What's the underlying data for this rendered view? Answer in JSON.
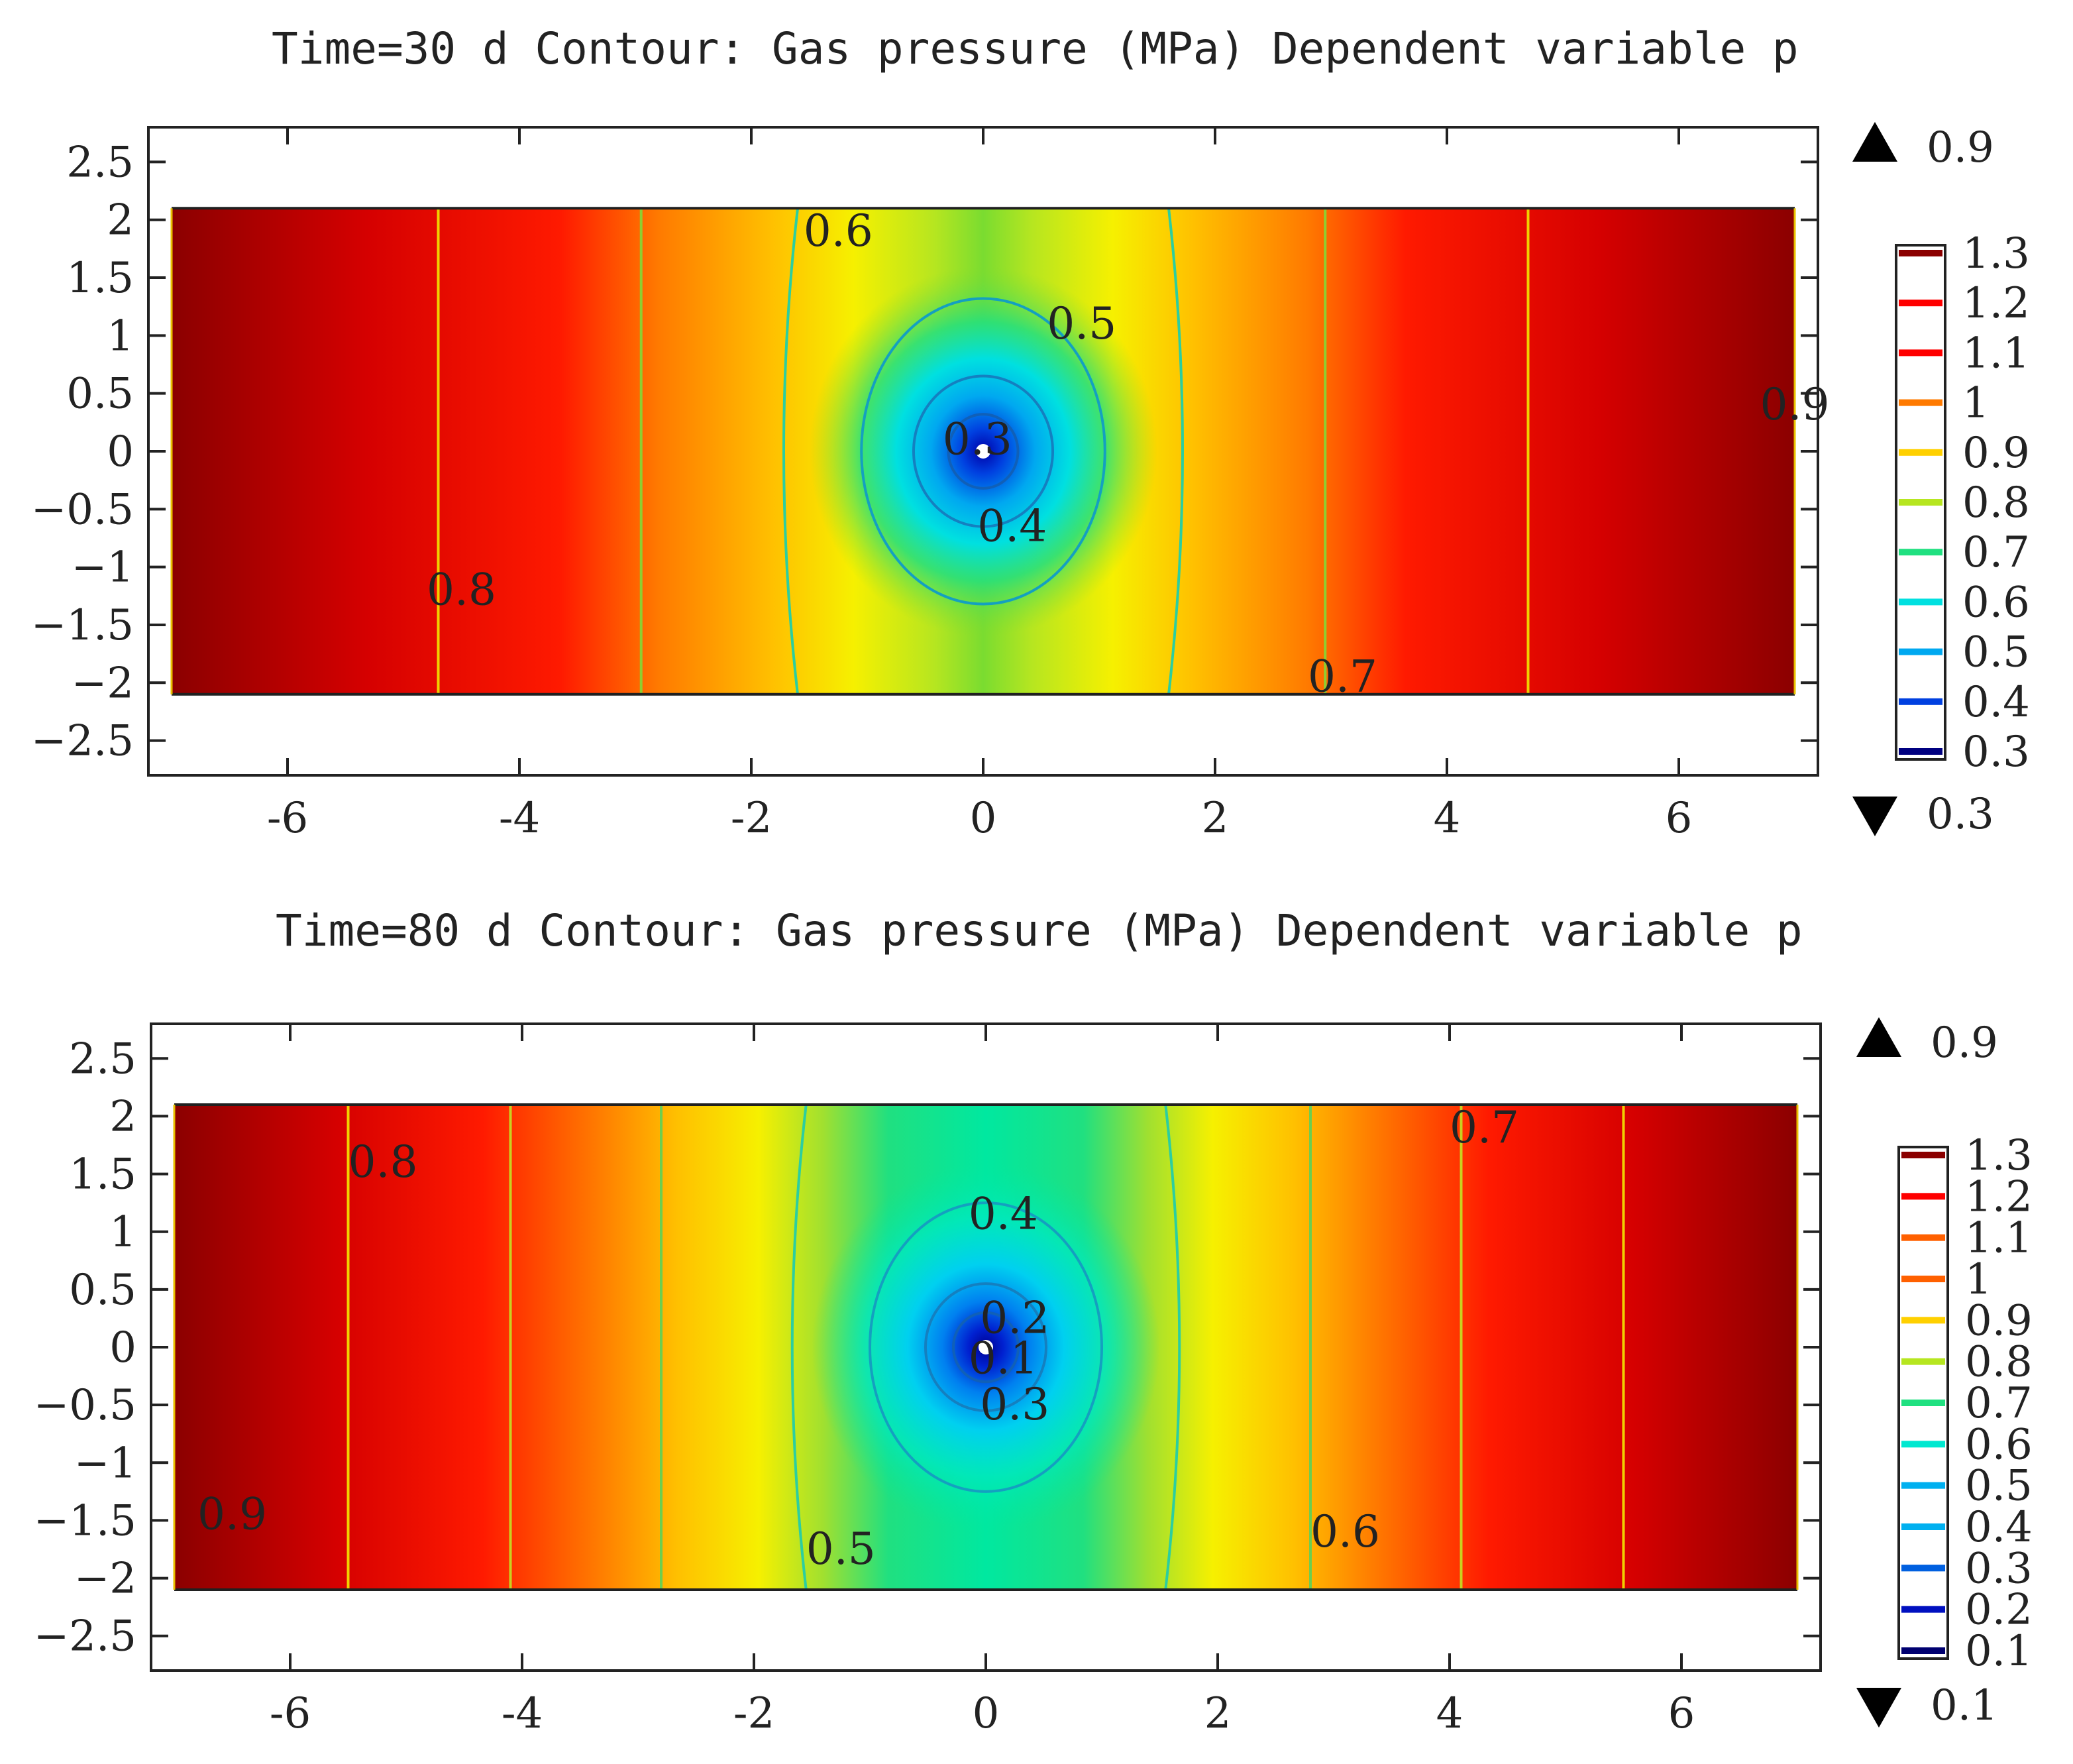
{
  "chart_data": [
    {
      "type": "contour",
      "title": "Time=30 d   Contour: Gas pressure (MPa)   Dependent variable p",
      "xlabel": "",
      "ylabel": "",
      "xlim": [
        -7.2,
        7.2
      ],
      "ylim": [
        -2.8,
        2.8
      ],
      "x_ticks": [
        "-6",
        "-4",
        "-2",
        "0",
        "2",
        "4",
        "6"
      ],
      "x_tick_values": [
        -6,
        -4,
        -2,
        0,
        2,
        4,
        6
      ],
      "y_ticks": [
        "2.5",
        "2",
        "1.5",
        "1",
        "0.5",
        "0",
        "−0.5",
        "−1",
        "−1.5",
        "−2",
        "−2.5"
      ],
      "y_tick_values": [
        2.5,
        2,
        1.5,
        1,
        0.5,
        0,
        -0.5,
        -1,
        -1.5,
        -2,
        -2.5
      ],
      "domain": {
        "x": [
          -7,
          7
        ],
        "y": [
          -2.1,
          2.1
        ]
      },
      "surface_range": [
        0.3,
        1.3
      ],
      "surface_max_label": "0.9",
      "surface_min_label": "0.3",
      "colorbar_ticks": [
        "1.3",
        "1.2",
        "1.1",
        "1",
        "0.9",
        "0.8",
        "0.7",
        "0.6",
        "0.5",
        "0.4",
        "0.3"
      ],
      "contour_levels": [
        {
          "level": 0.9,
          "color": "#f0d000",
          "x_positions": [
            -4.7,
            4.7
          ]
        },
        {
          "level": 0.8,
          "color": "#8fce30",
          "x_positions": [
            -2.95,
            2.95
          ]
        },
        {
          "level": 0.7,
          "color": "#2ccea0",
          "x_positions": [
            -1.6,
            1.6
          ]
        },
        {
          "level": 0.6,
          "color": "#14a0c0",
          "ellipse": {
            "rx": 1.05,
            "ry": 1.32
          }
        },
        {
          "level": 0.5,
          "color": "#1480c0",
          "ellipse": {
            "rx": 0.6,
            "ry": 0.65
          }
        },
        {
          "level": 0.4,
          "color": "#1060b8",
          "ellipse": {
            "rx": 0.3,
            "ry": 0.32
          }
        }
      ],
      "contour_labels": [
        {
          "text": "0.6",
          "x": -1.55,
          "y": 1.9
        },
        {
          "text": "0.5",
          "x": 0.55,
          "y": 1.1
        },
        {
          "text": "0.3",
          "x": -0.35,
          "y": 0.1
        },
        {
          "text": "0.4",
          "x": -0.05,
          "y": -0.65
        },
        {
          "text": "0.8",
          "x": -4.8,
          "y": -1.2
        },
        {
          "text": "0.7",
          "x": 2.8,
          "y": -1.95
        },
        {
          "text": "0.9",
          "x": 6.7,
          "y": 0.4
        }
      ]
    },
    {
      "type": "contour",
      "title": "Time=80 d   Contour: Gas pressure (MPa)   Dependent variable p",
      "xlabel": "",
      "ylabel": "",
      "xlim": [
        -7.2,
        7.2
      ],
      "ylim": [
        -2.8,
        2.8
      ],
      "x_ticks": [
        "-6",
        "-4",
        "-2",
        "0",
        "2",
        "4",
        "6"
      ],
      "x_tick_values": [
        -6,
        -4,
        -2,
        0,
        2,
        4,
        6
      ],
      "y_ticks": [
        "2.5",
        "2",
        "1.5",
        "1",
        "0.5",
        "0",
        "−0.5",
        "−1",
        "−1.5",
        "−2",
        "−2.5"
      ],
      "y_tick_values": [
        2.5,
        2,
        1.5,
        1,
        0.5,
        0,
        -0.5,
        -1,
        -1.5,
        -2,
        -2.5
      ],
      "domain": {
        "x": [
          -7,
          7
        ],
        "y": [
          -2.1,
          2.1
        ]
      },
      "surface_range": [
        0.1,
        1.3
      ],
      "surface_max_label": "0.9",
      "surface_min_label": "0.1",
      "colorbar_ticks": [
        "1.3",
        "1.2",
        "1.1",
        "1",
        "0.9",
        "0.8",
        "0.7",
        "0.6",
        "0.5",
        "0.4",
        "0.3",
        "0.2",
        "0.1"
      ],
      "contour_levels": [
        {
          "level": 0.9,
          "color": "#f0d000",
          "x_positions": [
            -5.5,
            5.5
          ]
        },
        {
          "level": 0.8,
          "color": "#c8d020",
          "x_positions": [
            -4.1,
            4.1
          ]
        },
        {
          "level": 0.7,
          "color": "#6cce50",
          "x_positions": [
            -2.8,
            2.8
          ]
        },
        {
          "level": 0.6,
          "color": "#2ccea0",
          "x_positions": [
            -1.55,
            1.55
          ]
        },
        {
          "level": 0.5,
          "color": "#14a0c0",
          "ellipse": {
            "rx": 1.0,
            "ry": 1.25
          }
        },
        {
          "level": 0.4,
          "color": "#1480c0",
          "ellipse": {
            "rx": 0.52,
            "ry": 0.55
          }
        },
        {
          "level": 0.3,
          "color": "#1060b8",
          "ellipse": {
            "rx": 0.28,
            "ry": 0.3
          }
        }
      ],
      "contour_labels": [
        {
          "text": "0.8",
          "x": -5.5,
          "y": 1.6
        },
        {
          "text": "0.7",
          "x": 4.0,
          "y": 1.9
        },
        {
          "text": "0.4",
          "x": -0.15,
          "y": 1.15
        },
        {
          "text": "0.2",
          "x": -0.05,
          "y": 0.25
        },
        {
          "text": "0.1",
          "x": -0.15,
          "y": -0.1
        },
        {
          "text": "0.3",
          "x": -0.05,
          "y": -0.5
        },
        {
          "text": "0.9",
          "x": -6.8,
          "y": -1.45
        },
        {
          "text": "0.5",
          "x": -1.55,
          "y": -1.75
        },
        {
          "text": "0.6",
          "x": 2.8,
          "y": -1.6
        }
      ]
    }
  ]
}
